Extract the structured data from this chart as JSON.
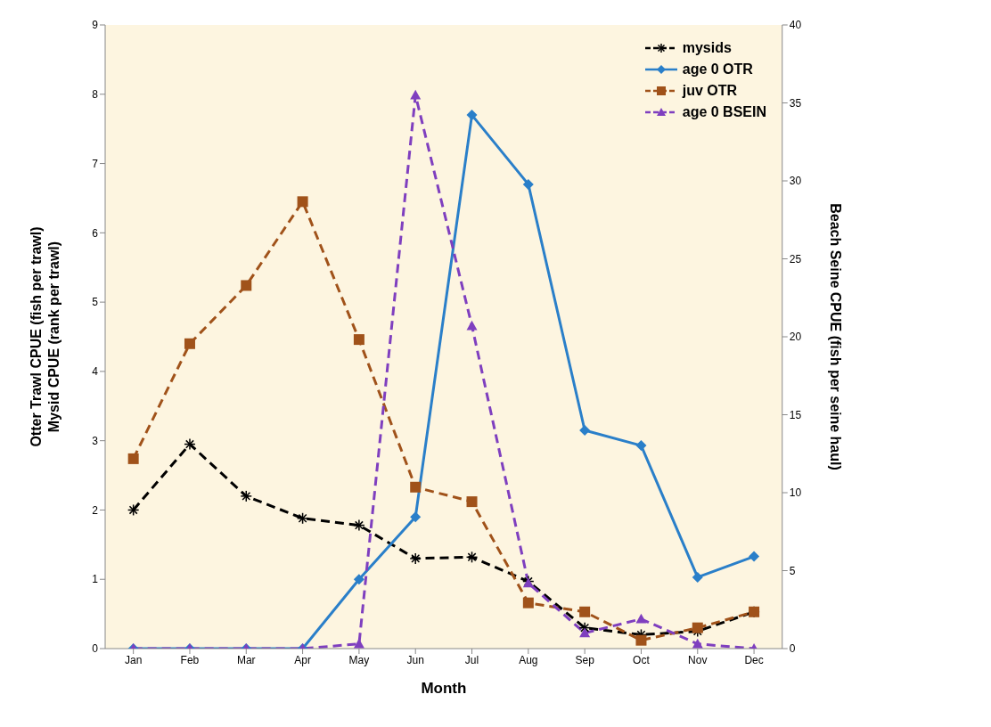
{
  "chart_data": {
    "type": "line",
    "xlabel": "Month",
    "ylabel": "Otter Trawl CPUE (fish per trawl)\nMysid CPUE (rank per trawl)",
    "y2label": "Beach Seine CPUE (fish per seine haul)",
    "categories": [
      "Jan",
      "Feb",
      "Mar",
      "Apr",
      "May",
      "Jun",
      "Jul",
      "Aug",
      "Sep",
      "Oct",
      "Nov",
      "Dec"
    ],
    "series": [
      {
        "name": "mysids",
        "color": "#000000",
        "marker": "cross",
        "line_style": "dashed",
        "values": [
          2.0,
          2.95,
          2.2,
          1.88,
          1.78,
          1.3,
          1.32,
          0.97,
          0.3,
          0.2,
          0.25,
          0.53
        ]
      },
      {
        "name": "age 0 OTR",
        "color": "#2a7fc9",
        "marker": "diamond",
        "line_style": "solid",
        "values": [
          0,
          0,
          0,
          0,
          1.0,
          1.9,
          7.7,
          6.7,
          3.15,
          2.93,
          1.03,
          1.33
        ]
      },
      {
        "name": "juv OTR",
        "color": "#a0521a",
        "marker": "square",
        "line_style": "dashed",
        "values": [
          2.74,
          4.4,
          5.24,
          6.45,
          4.46,
          2.33,
          2.12,
          0.66,
          0.53,
          0.12,
          0.3,
          0.53
        ]
      },
      {
        "name": "age 0 BSEIN",
        "color": "#7f3fbf",
        "marker": "triangle",
        "line_style": "dashed",
        "axis": "y2",
        "values": [
          0,
          0,
          0,
          0,
          0.3,
          35.5,
          20.7,
          4.2,
          1.0,
          1.9,
          0.3,
          0
        ]
      }
    ],
    "ylim": [
      0,
      9
    ],
    "yticks": [
      0,
      1,
      2,
      3,
      4,
      5,
      6,
      7,
      8,
      9
    ],
    "y2lim": [
      0,
      40
    ],
    "y2ticks": [
      0,
      5,
      10,
      15,
      20,
      25,
      30,
      35,
      40
    ],
    "legend": "top right"
  }
}
